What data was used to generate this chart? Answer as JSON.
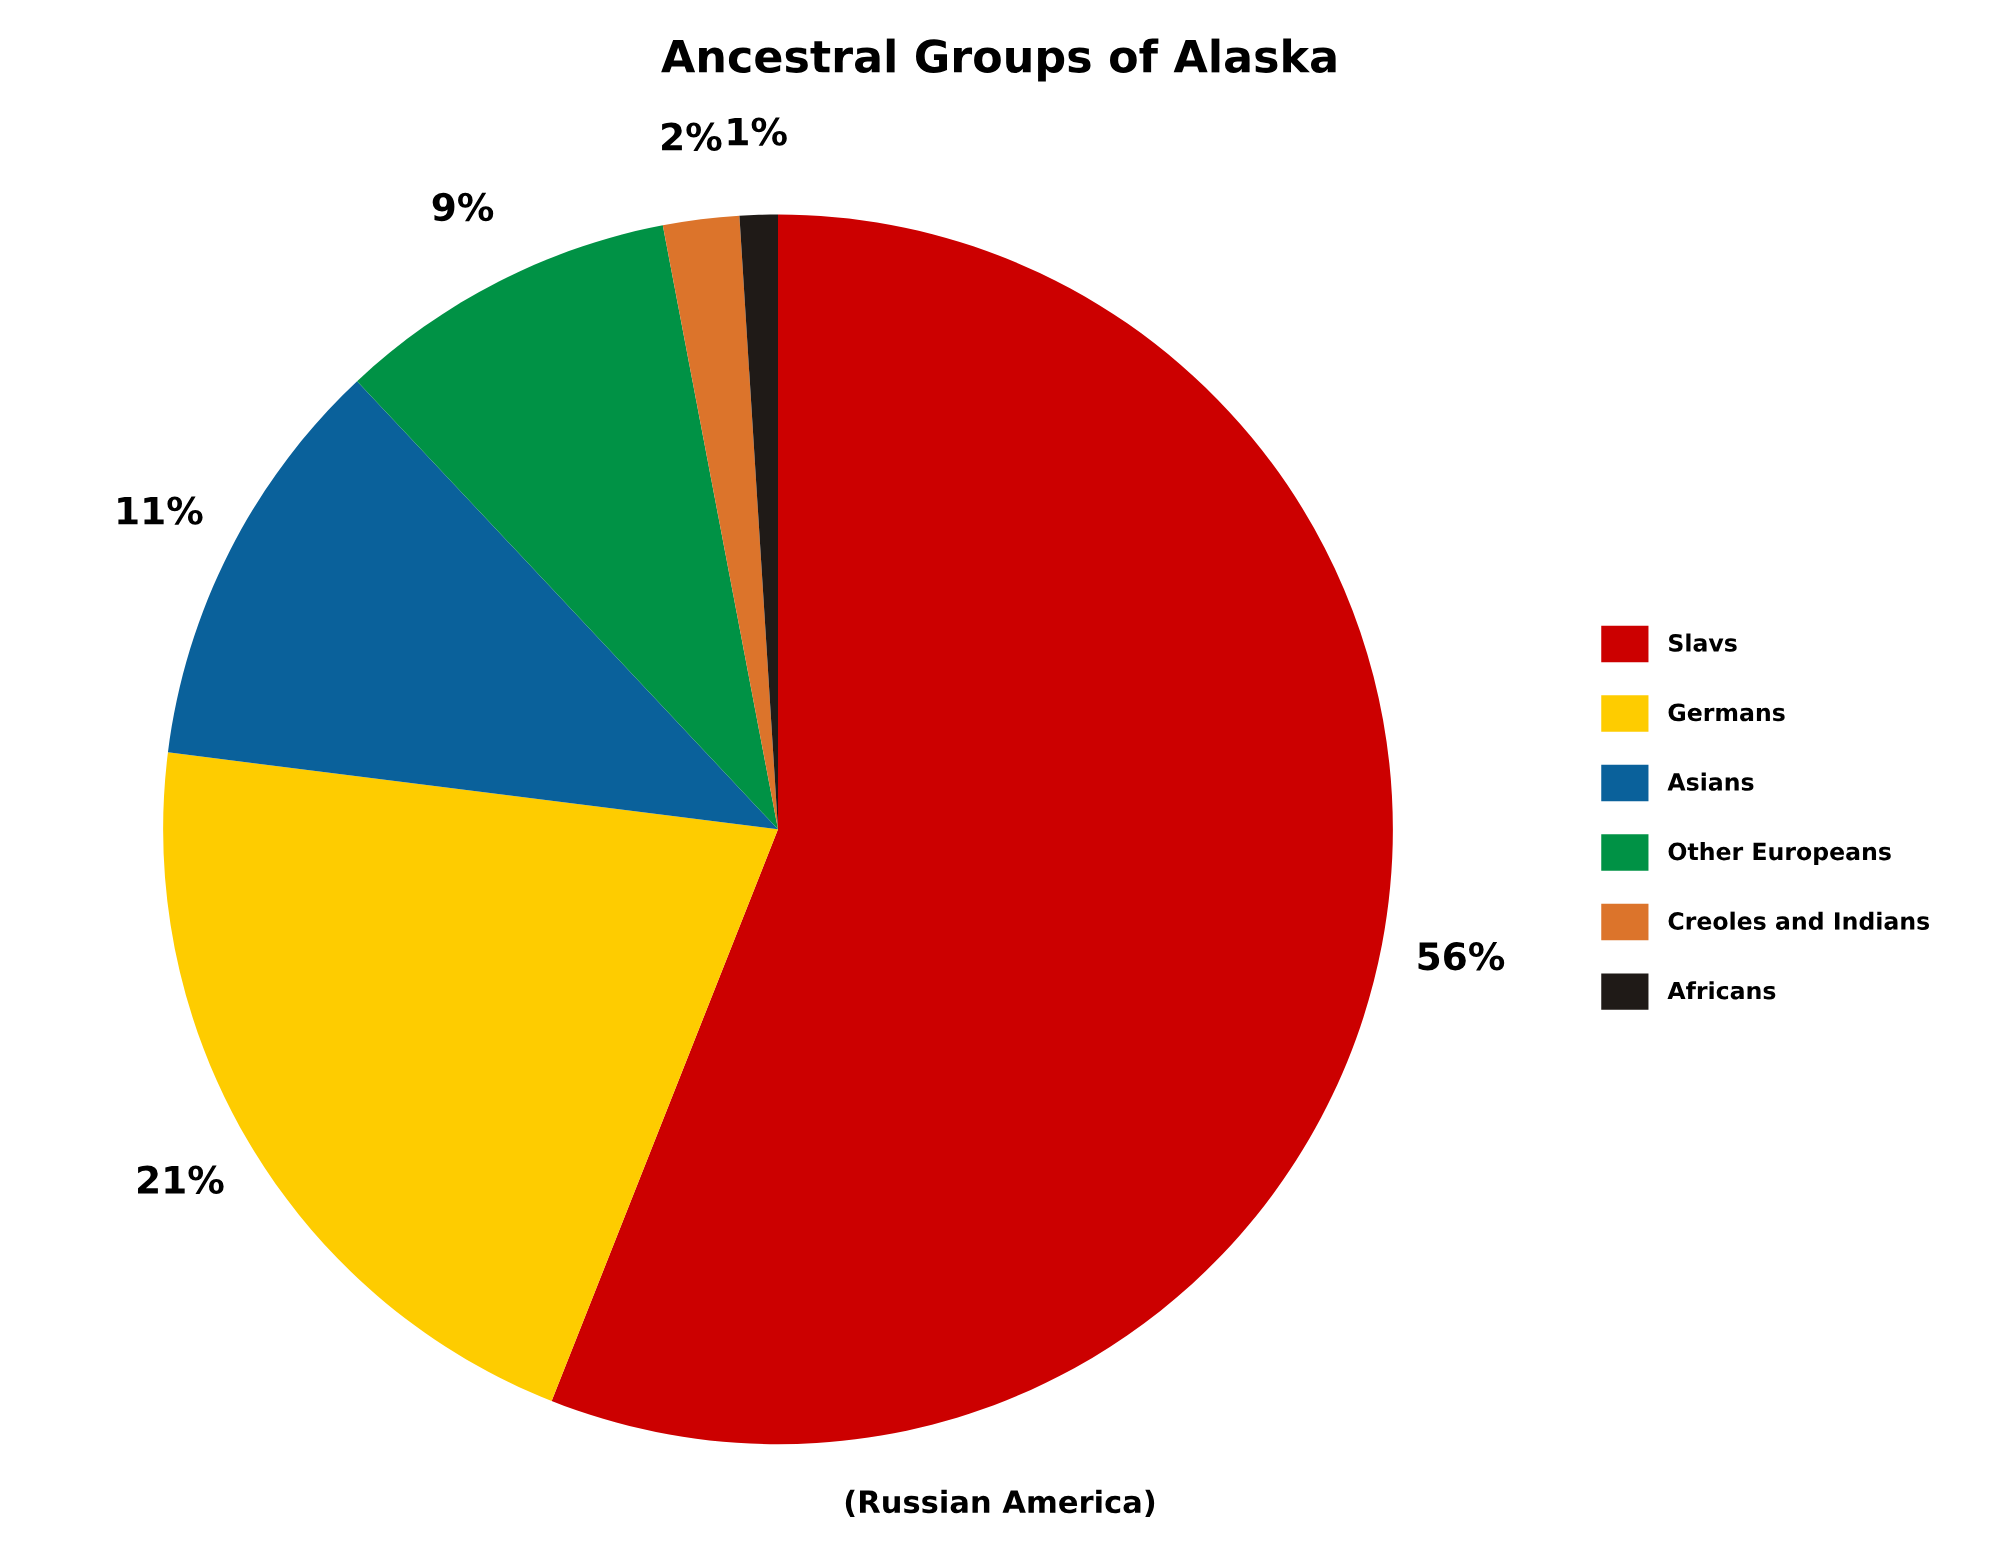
{
  "chart_data": {
    "type": "pie",
    "title": "Ancestral Groups of Alaska",
    "categories": [
      "Slavs",
      "Germans",
      "Asians",
      "Other Europeans",
      "Creoles and Indians",
      "Africans"
    ],
    "values": [
      56,
      21,
      11,
      9,
      2,
      1
    ],
    "colors": [
      "#cc0000",
      "#fecc00",
      "#0a619b",
      "#009245",
      "#dc742b",
      "#1f1a17"
    ],
    "value_labels": [
      "56%",
      "21%",
      "11%",
      "9%",
      "2%",
      "1%"
    ],
    "annotations": [
      "(Russian America)"
    ],
    "legend": "right"
  }
}
